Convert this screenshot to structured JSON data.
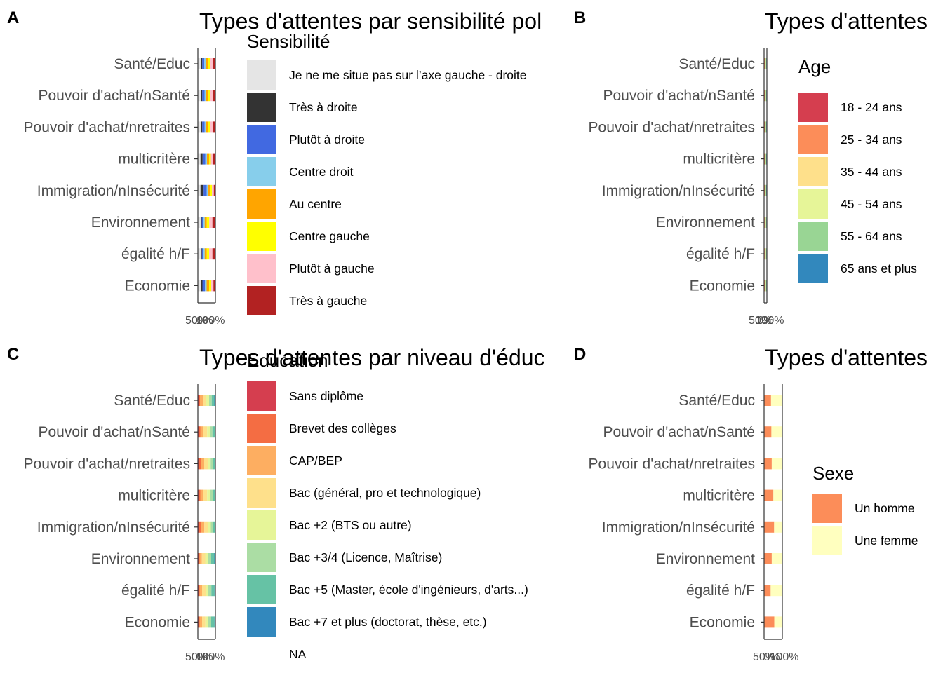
{
  "figure": {
    "categories": [
      "Santé/Educ",
      "Pouvoir d'achat/nSanté",
      "Pouvoir d'achat/nretraites",
      "multicritère",
      "Immigration/nInsécurité",
      "Environnement",
      "égalité h/F",
      "Economie"
    ],
    "x_tick_labels_overlapping": [
      "50%",
      "100%",
      "0%"
    ]
  },
  "chart_data": [
    {
      "panel": "A",
      "type": "bar",
      "orientation": "horizontal",
      "stacked": "percent",
      "title": "Types d'attentes par sensibilité pol",
      "categories": [
        "Santé/Educ",
        "Pouvoir d'achat/nSanté",
        "Pouvoir d'achat/nretraites",
        "multicritère",
        "Immigration/nInsécurité",
        "Environnement",
        "égalité h/F",
        "Economie"
      ],
      "xlim": [
        0,
        100
      ],
      "x_tick_labels": [
        "0%",
        "50%",
        "100%"
      ],
      "legend_title": "Sensibilité",
      "legend_position": "right",
      "series": [
        {
          "name": "Je ne me situe pas sur l’axe gauche - droite",
          "color": "#e5e5e5",
          "values": [
            20,
            19,
            18,
            15,
            15,
            18,
            19,
            20
          ]
        },
        {
          "name": "Très à droite",
          "color": "#333333",
          "values": [
            5,
            6,
            7,
            12,
            18,
            4,
            4,
            6
          ]
        },
        {
          "name": "Plutôt à droite",
          "color": "#4169e1",
          "values": [
            12,
            13,
            14,
            16,
            18,
            9,
            9,
            14
          ]
        },
        {
          "name": "Centre droit",
          "color": "#87ceeb",
          "values": [
            8,
            8,
            8,
            9,
            9,
            8,
            7,
            10
          ]
        },
        {
          "name": "Au centre",
          "color": "#ffa500",
          "values": [
            12,
            12,
            12,
            12,
            11,
            12,
            12,
            14
          ]
        },
        {
          "name": "Centre gauche",
          "color": "#ffff00",
          "values": [
            12,
            12,
            12,
            10,
            9,
            14,
            13,
            12
          ]
        },
        {
          "name": "Plutôt à gauche",
          "color": "#ffc0cb",
          "values": [
            16,
            15,
            15,
            14,
            11,
            18,
            19,
            13
          ]
        },
        {
          "name": "Très à gauche",
          "color": "#b22222",
          "values": [
            15,
            15,
            14,
            12,
            9,
            17,
            17,
            11
          ]
        }
      ]
    },
    {
      "panel": "B",
      "type": "bar",
      "orientation": "horizontal",
      "stacked": "percent",
      "title": "Types d'attentes",
      "categories": [
        "Santé/Educ",
        "Pouvoir d'achat/nSanté",
        "Pouvoir d'achat/nretraites",
        "multicritère",
        "Immigration/nInsécurité",
        "Environnement",
        "égalité h/F",
        "Economie"
      ],
      "xlim": [
        0,
        100
      ],
      "x_tick_labels": [
        "0%",
        "50%",
        "100%"
      ],
      "legend_title": "Age",
      "legend_position": "right",
      "series": [
        {
          "name": "18 - 24 ans",
          "color": "#d53e4f",
          "values": [
            12,
            11,
            10,
            11,
            10,
            15,
            16,
            13
          ]
        },
        {
          "name": "25 - 34 ans",
          "color": "#fc8d59",
          "values": [
            18,
            17,
            15,
            16,
            15,
            19,
            19,
            18
          ]
        },
        {
          "name": "35 - 44 ans",
          "color": "#fee08b",
          "values": [
            18,
            18,
            17,
            17,
            17,
            17,
            17,
            18
          ]
        },
        {
          "name": "45 - 54 ans",
          "color": "#e6f598",
          "values": [
            18,
            19,
            19,
            18,
            19,
            17,
            17,
            18
          ]
        },
        {
          "name": "55 - 64 ans",
          "color": "#99d594",
          "values": [
            17,
            18,
            20,
            18,
            19,
            16,
            16,
            17
          ]
        },
        {
          "name": "65 ans et plus",
          "color": "#3288bd",
          "values": [
            17,
            17,
            19,
            20,
            20,
            16,
            15,
            16
          ]
        }
      ]
    },
    {
      "panel": "C",
      "type": "bar",
      "orientation": "horizontal",
      "stacked": "percent",
      "title": "Types d'attentes par niveau d'éduc",
      "categories": [
        "Santé/Educ",
        "Pouvoir d'achat/nSanté",
        "Pouvoir d'achat/nretraites",
        "multicritère",
        "Immigration/nInsécurité",
        "Environnement",
        "égalité h/F",
        "Economie"
      ],
      "xlim": [
        0,
        100
      ],
      "x_tick_labels": [
        "0%",
        "50%",
        "100%"
      ],
      "legend_title": "Education",
      "legend_position": "right",
      "series": [
        {
          "name": "Sans diplôme",
          "color": "#d53e4f",
          "values": [
            5,
            6,
            7,
            6,
            7,
            4,
            4,
            4
          ]
        },
        {
          "name": "Brevet des collèges",
          "color": "#f46d43",
          "values": [
            7,
            8,
            9,
            8,
            9,
            6,
            6,
            6
          ]
        },
        {
          "name": "CAP/BEP",
          "color": "#fdae61",
          "values": [
            16,
            18,
            20,
            18,
            21,
            13,
            14,
            14
          ]
        },
        {
          "name": "Bac (général, pro et technologique)",
          "color": "#fee08b",
          "values": [
            20,
            21,
            21,
            21,
            21,
            19,
            20,
            19
          ]
        },
        {
          "name": "Bac +2 (BTS ou autre)",
          "color": "#e6f598",
          "values": [
            16,
            16,
            16,
            17,
            16,
            16,
            16,
            16
          ]
        },
        {
          "name": "Bac +3/4 (Licence, Maîtrise)",
          "color": "#abdda4",
          "values": [
            15,
            14,
            13,
            14,
            13,
            18,
            17,
            17
          ]
        },
        {
          "name": "Bac +5 (Master, école d'ingénieurs, d'arts...)",
          "color": "#66c2a5",
          "values": [
            15,
            13,
            11,
            12,
            10,
            18,
            18,
            19
          ]
        },
        {
          "name": "Bac +7 et plus (doctorat, thèse, etc.)",
          "color": "#3288bd",
          "values": [
            4,
            3,
            2,
            3,
            2,
            5,
            4,
            4
          ]
        },
        {
          "name": "NA",
          "color": "#ffffff",
          "values": [
            2,
            1,
            1,
            1,
            1,
            1,
            1,
            1
          ]
        }
      ]
    },
    {
      "panel": "D",
      "type": "bar",
      "orientation": "horizontal",
      "stacked": "percent",
      "title": "Types d'attentes",
      "categories": [
        "Santé/Educ",
        "Pouvoir d'achat/nSanté",
        "Pouvoir d'achat/nretraites",
        "multicritère",
        "Immigration/nInsécurité",
        "Environnement",
        "égalité h/F",
        "Economie"
      ],
      "xlim": [
        0,
        100
      ],
      "x_tick_labels": [
        "0%",
        "50%",
        "100%"
      ],
      "legend_title": "Sexe",
      "legend_position": "right",
      "series": [
        {
          "name": "Un homme",
          "color": "#fc8d59",
          "values": [
            38,
            40,
            42,
            51,
            55,
            42,
            36,
            56
          ]
        },
        {
          "name": "Une femme",
          "color": "#ffffbf",
          "values": [
            62,
            60,
            58,
            49,
            45,
            58,
            64,
            44
          ]
        }
      ]
    }
  ]
}
